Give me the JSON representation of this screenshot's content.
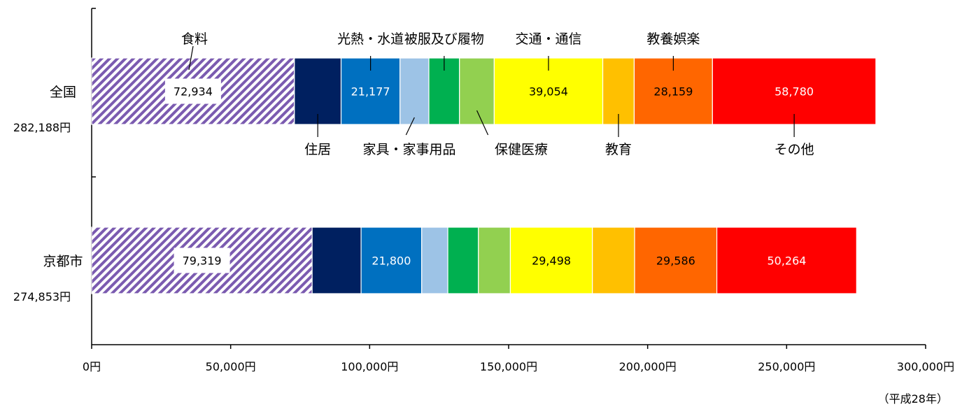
{
  "chart_data": {
    "type": "bar",
    "orientation": "horizontal",
    "stacked": true,
    "categories": [
      "全国",
      "京都市"
    ],
    "category_totals": [
      "282,188円",
      "274,853円"
    ],
    "series": [
      {
        "name": "食料",
        "values": [
          72934,
          79319
        ],
        "color": "#7B5BB0",
        "pattern": "diagonal-hatch"
      },
      {
        "name": "住居",
        "values": [
          16800,
          17600
        ],
        "color": "#002060"
      },
      {
        "name": "光熱・水道",
        "values": [
          21177,
          21800
        ],
        "color": "#0070C0"
      },
      {
        "name": "家具・家事用品",
        "values": [
          10400,
          9400
        ],
        "color": "#9DC3E6"
      },
      {
        "name": "被服及び履物",
        "values": [
          11000,
          11000
        ],
        "color": "#00B050"
      },
      {
        "name": "保健医療",
        "values": [
          12500,
          11500
        ],
        "color": "#92D050"
      },
      {
        "name": "交通・通信",
        "values": [
          39054,
          29498
        ],
        "color": "#FFFF00"
      },
      {
        "name": "教育",
        "values": [
          11300,
          15200
        ],
        "color": "#FFC000"
      },
      {
        "name": "教養娯楽",
        "values": [
          28159,
          29586
        ],
        "color": "#FF6600"
      },
      {
        "name": "その他",
        "values": [
          58780,
          50264
        ],
        "color": "#FF0000"
      }
    ],
    "data_labels": [
      [
        {
          "series": 0,
          "text": "72,934"
        },
        {
          "series": 2,
          "text": "21,177"
        },
        {
          "series": 6,
          "text": "39,054"
        },
        {
          "series": 8,
          "text": "28,159"
        },
        {
          "series": 9,
          "text": "58,780"
        }
      ],
      [
        {
          "series": 0,
          "text": "79,319"
        },
        {
          "series": 2,
          "text": "21,800"
        },
        {
          "series": 6,
          "text": "29,498"
        },
        {
          "series": 8,
          "text": "29,586"
        },
        {
          "series": 9,
          "text": "50,264"
        }
      ]
    ],
    "callout_labels": [
      {
        "series": 0,
        "side": "above"
      },
      {
        "series": 1,
        "side": "below"
      },
      {
        "series": 2,
        "side": "above"
      },
      {
        "series": 3,
        "side": "below"
      },
      {
        "series": 4,
        "side": "above"
      },
      {
        "series": 5,
        "side": "below"
      },
      {
        "series": 6,
        "side": "above"
      },
      {
        "series": 7,
        "side": "below"
      },
      {
        "series": 8,
        "side": "above"
      },
      {
        "series": 9,
        "side": "below"
      }
    ],
    "x_ticks": [
      0,
      50000,
      100000,
      150000,
      200000,
      250000,
      300000
    ],
    "x_tick_labels": [
      "0円",
      "50,000円",
      "100,000円",
      "150,000円",
      "200,000円",
      "250,000円",
      "300,000円"
    ],
    "xlim": [
      0,
      300000
    ],
    "grid": false,
    "legend": "callouts",
    "note": "（平成28年）"
  }
}
